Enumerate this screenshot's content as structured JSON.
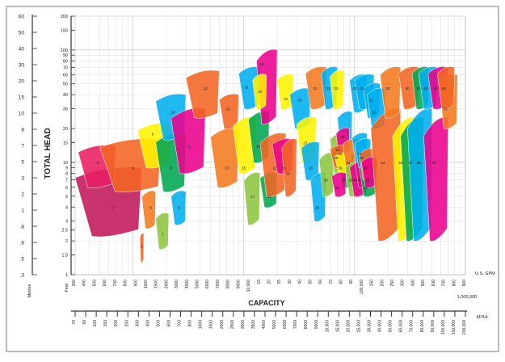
{
  "chart_data": {
    "type": "area",
    "title": "",
    "xlabel": "CAPACITY",
    "ylabel": "TOTAL HEAD",
    "x_scale": "log",
    "y_scale": "log",
    "grid": true,
    "left_units_label": "Metres",
    "left_units2_label": "Feet",
    "left_axis_ticks": [
      "60",
      "50",
      "40",
      "30",
      "20",
      "15",
      "10",
      "8",
      "7",
      "5",
      "3",
      "2",
      "1",
      ".8",
      ".6",
      ".5",
      ".3"
    ],
    "head_axis_ticks": [
      "200",
      "150",
      "100",
      "90",
      "80",
      "70",
      "60",
      "50",
      "40",
      "30",
      "20",
      "15",
      "10",
      "9",
      "8",
      "7",
      "6",
      "5",
      "4",
      "3",
      "2.5",
      "2",
      "1.5",
      "1"
    ],
    "usgpm_label": "U.S. GPM",
    "usgpm_ticks": [
      "300",
      "400",
      "500",
      "600",
      "700",
      "800",
      "900",
      "1000",
      "1500",
      "2000",
      "3000",
      "4000",
      "5000",
      "6000",
      "7000",
      "8000",
      "9000",
      "10,000",
      "15",
      "20",
      "25",
      "30",
      "40",
      "50",
      "60",
      "70",
      "80",
      "90",
      "100,000",
      "150",
      "200",
      "250",
      "300",
      "400",
      "500",
      "600",
      "700",
      "800",
      "900"
    ],
    "m3h_label": "M³/Hr.",
    "m3h_ticks": [
      "70",
      "90",
      "100",
      "150",
      "200",
      "250",
      "300",
      "400",
      "500",
      "600",
      "700",
      "800",
      "1000",
      "1500",
      "2000",
      "2500",
      "3000",
      "3500",
      "4000",
      "5000",
      "6000",
      "7000",
      "8000",
      "9000",
      "10,000",
      "15,000",
      "20,000",
      "25,000",
      "30,000",
      "40,000",
      "50,000",
      "60,000",
      "70,000",
      "80,000",
      "90,000",
      "100,000",
      "150,000",
      "200,000"
    ],
    "capacity_end_label": "1,000,000",
    "series": [
      {
        "name": "1",
        "color": "#c2185b",
        "x_range": [
          300,
          1200
        ],
        "y_range": [
          2.2,
          9
        ],
        "label_at": [
          650,
          4
        ]
      },
      {
        "name": "2",
        "color": "#e91e63",
        "x_range": [
          320,
          700
        ],
        "y_range": [
          6,
          14
        ],
        "label_at": [
          480,
          10
        ]
      },
      {
        "name": "3",
        "color": "#f26522",
        "x_range": [
          1150,
          1250
        ],
        "y_range": [
          1.3,
          2.3
        ],
        "label_at": [
          1200,
          1.8
        ]
      },
      {
        "name": "4",
        "color": "#f26522",
        "x_range": [
          500,
          1800
        ],
        "y_range": [
          5.5,
          16
        ],
        "label_at": [
          1000,
          9
        ]
      },
      {
        "name": "5",
        "color": "#f47a20",
        "x_range": [
          1200,
          1600
        ],
        "y_range": [
          2.6,
          5.5
        ],
        "label_at": [
          1450,
          4
        ]
      },
      {
        "name": "6",
        "color": "#fff200",
        "x_range": [
          1100,
          2200
        ],
        "y_range": [
          9,
          22
        ],
        "label_at": [
          1500,
          18
        ]
      },
      {
        "name": "7",
        "color": "#8dc63f",
        "x_range": [
          1600,
          2100
        ],
        "y_range": [
          1.7,
          3.5
        ],
        "label_at": [
          1850,
          2.3
        ]
      },
      {
        "name": "8",
        "color": "#00a651",
        "x_range": [
          1600,
          3000
        ],
        "y_range": [
          5.5,
          18
        ],
        "label_at": [
          2200,
          9
        ]
      },
      {
        "name": "9",
        "color": "#00aeef",
        "x_range": [
          2200,
          3000
        ],
        "y_range": [
          2.8,
          5.5
        ],
        "label_at": [
          2600,
          4
        ]
      },
      {
        "name": "10",
        "color": "#00aeef",
        "x_range": [
          1600,
          3000
        ],
        "y_range": [
          16,
          40
        ],
        "label_at": [
          2300,
          28
        ]
      },
      {
        "name": "11",
        "color": "#ec008c",
        "x_range": [
          2200,
          4500
        ],
        "y_range": [
          8,
          30
        ],
        "label_at": [
          3200,
          14
        ]
      },
      {
        "name": "12",
        "color": "#f26522",
        "x_range": [
          3000,
          6000
        ],
        "y_range": [
          25,
          65
        ],
        "label_at": [
          4500,
          46
        ]
      },
      {
        "name": "13",
        "color": "#f47a20",
        "x_range": [
          5000,
          9000
        ],
        "y_range": [
          6,
          20
        ],
        "label_at": [
          7000,
          9
        ]
      },
      {
        "name": "14",
        "color": "#f26522",
        "x_range": [
          6000,
          9000
        ],
        "y_range": [
          20,
          40
        ],
        "label_at": [
          7200,
          30
        ]
      },
      {
        "name": "15",
        "color": "#fff200",
        "x_range": [
          8000,
          13000
        ],
        "y_range": [
          8,
          25
        ],
        "label_at": [
          10000,
          9
        ]
      },
      {
        "name": "16",
        "color": "#00aeef",
        "x_range": [
          9000,
          14000
        ],
        "y_range": [
          30,
          70
        ],
        "label_at": [
          10500,
          47
        ]
      },
      {
        "name": "17",
        "color": "#8dc63f",
        "x_range": [
          10000,
          14000
        ],
        "y_range": [
          2.8,
          8
        ],
        "label_at": [
          12000,
          5
        ]
      },
      {
        "name": "18",
        "color": "#00a651",
        "x_range": [
          11000,
          17000
        ],
        "y_range": [
          10,
          28
        ],
        "label_at": [
          13500,
          14
        ]
      },
      {
        "name": "19",
        "color": "#ec008c",
        "x_range": [
          13000,
          20000
        ],
        "y_range": [
          22,
          100
        ],
        "label_at": [
          14500,
          75
        ]
      },
      {
        "name": "20",
        "color": "#fff200",
        "x_range": [
          12000,
          16000
        ],
        "y_range": [
          30,
          60
        ],
        "label_at": [
          14000,
          43
        ]
      },
      {
        "name": "21",
        "color": "#00a651",
        "x_range": [
          14000,
          20000
        ],
        "y_range": [
          4,
          8
        ],
        "label_at": [
          17000,
          5
        ]
      },
      {
        "name": "22",
        "color": "#f26522",
        "x_range": [
          14000,
          24000
        ],
        "y_range": [
          5,
          18
        ],
        "label_at": [
          19000,
          9
        ]
      },
      {
        "name": "23",
        "color": "#ec008c",
        "x_range": [
          18000,
          28000
        ],
        "y_range": [
          8,
          16
        ],
        "label_at": [
          23000,
          9
        ]
      },
      {
        "name": "24",
        "color": "#fff200",
        "x_range": [
          20000,
          28000
        ],
        "y_range": [
          30,
          60
        ],
        "label_at": [
          24000,
          37
        ]
      },
      {
        "name": "25",
        "color": "#f26522",
        "x_range": [
          22000,
          30000
        ],
        "y_range": [
          5,
          16
        ],
        "label_at": [
          25000,
          8
        ]
      },
      {
        "name": "26",
        "color": "#00aeef",
        "x_range": [
          26000,
          40000
        ],
        "y_range": [
          20,
          45
        ],
        "label_at": [
          32000,
          36
        ]
      },
      {
        "name": "27",
        "color": "#fff200",
        "x_range": [
          30000,
          45000
        ],
        "y_range": [
          10,
          25
        ],
        "label_at": [
          36000,
          15
        ]
      },
      {
        "name": "28",
        "color": "#00aeef",
        "x_range": [
          33000,
          48000
        ],
        "y_range": [
          7,
          15
        ],
        "label_at": [
          40000,
          9
        ]
      },
      {
        "name": "29",
        "color": "#00aeef",
        "x_range": [
          40000,
          55000
        ],
        "y_range": [
          3,
          8
        ],
        "label_at": [
          46000,
          4
        ]
      },
      {
        "name": "30",
        "color": "#8dc63f",
        "x_range": [
          48000,
          65000
        ],
        "y_range": [
          5,
          12
        ],
        "label_at": [
          55000,
          7
        ]
      },
      {
        "name": "31",
        "color": "#f47a20",
        "x_range": [
          36000,
          56000
        ],
        "y_range": [
          30,
          70
        ],
        "label_at": [
          44000,
          46
        ]
      },
      {
        "name": "32",
        "color": "#00aeef",
        "x_range": [
          50000,
          70000
        ],
        "y_range": [
          30,
          70
        ],
        "label_at": [
          58000,
          46
        ]
      },
      {
        "name": "33",
        "color": "#fff200",
        "x_range": [
          60000,
          80000
        ],
        "y_range": [
          30,
          65
        ],
        "label_at": [
          68000,
          46
        ]
      },
      {
        "name": "34",
        "color": "#00aeef",
        "x_range": [
          70000,
          95000
        ],
        "y_range": [
          12,
          28
        ],
        "label_at": [
          78000,
          17
        ]
      },
      {
        "name": "35",
        "color": "#8dc63f",
        "x_range": [
          60000,
          85000
        ],
        "y_range": [
          8,
          18
        ],
        "label_at": [
          70000,
          13
        ]
      },
      {
        "name": "36",
        "color": "#ec008c",
        "x_range": [
          68000,
          90000
        ],
        "y_range": [
          10,
          20
        ],
        "label_at": [
          74000,
          12
        ]
      },
      {
        "name": "37",
        "color": "#00a651",
        "x_range": [
          72000,
          100000
        ],
        "y_range": [
          6,
          12
        ],
        "label_at": [
          80000,
          7
        ]
      },
      {
        "name": "38",
        "color": "#f26522",
        "x_range": [
          60000,
          85000
        ],
        "y_range": [
          9,
          14
        ],
        "label_at": [
          68000,
          11
        ]
      },
      {
        "name": "39",
        "color": "#fff200",
        "x_range": [
          66000,
          92000
        ],
        "y_range": [
          8,
          12
        ],
        "label_at": [
          74000,
          9
        ]
      },
      {
        "name": "40",
        "color": "#ec008c",
        "x_range": [
          62000,
          84000
        ],
        "y_range": [
          5,
          8
        ],
        "label_at": [
          70000,
          6
        ]
      },
      {
        "name": "41",
        "color": "#f47a20",
        "x_range": [
          78000,
          110000
        ],
        "y_range": [
          8,
          16
        ],
        "label_at": [
          88000,
          10
        ]
      },
      {
        "name": "42",
        "color": "#8dc63f",
        "x_range": [
          82000,
          118000
        ],
        "y_range": [
          5,
          10
        ],
        "label_at": [
          92000,
          7
        ]
      },
      {
        "name": "43",
        "color": "#00aeef",
        "x_range": [
          90000,
          130000
        ],
        "y_range": [
          28,
          60
        ],
        "label_at": [
          100000,
          46
        ]
      },
      {
        "name": "44",
        "color": "#ec008c",
        "x_range": [
          90000,
          130000
        ],
        "y_range": [
          5,
          10
        ],
        "label_at": [
          100000,
          7
        ]
      },
      {
        "name": "45",
        "color": "#ec008c",
        "x_range": [
          100000,
          140000
        ],
        "y_range": [
          6,
          12
        ],
        "label_at": [
          110000,
          7
        ]
      },
      {
        "name": "46",
        "color": "#00a651",
        "x_range": [
          110000,
          160000
        ],
        "y_range": [
          5,
          10
        ],
        "label_at": [
          125000,
          6
        ]
      },
      {
        "name": "47",
        "color": "#00aeef",
        "x_range": [
          95000,
          130000
        ],
        "y_range": [
          10,
          18
        ],
        "label_at": [
          110000,
          12
        ]
      },
      {
        "name": "48",
        "color": "#00aeef",
        "x_range": [
          100000,
          140000
        ],
        "y_range": [
          9,
          16
        ],
        "label_at": [
          115000,
          11
        ]
      },
      {
        "name": "49",
        "color": "#f26522",
        "x_range": [
          110000,
          150000
        ],
        "y_range": [
          7,
          13
        ],
        "label_at": [
          125000,
          9
        ]
      },
      {
        "name": "50",
        "color": "#ec008c",
        "x_range": [
          115000,
          160000
        ],
        "y_range": [
          6,
          11
        ],
        "label_at": [
          130000,
          7
        ]
      },
      {
        "name": "51",
        "color": "#00aeef",
        "x_range": [
          100000,
          150000
        ],
        "y_range": [
          30,
          60
        ],
        "label_at": [
          118000,
          46
        ]
      },
      {
        "name": "52",
        "color": "#00aeef",
        "x_range": [
          120000,
          170000
        ],
        "y_range": [
          25,
          50
        ],
        "label_at": [
          140000,
          36
        ]
      },
      {
        "name": "53",
        "color": "#00aeef",
        "x_range": [
          130000,
          190000
        ],
        "y_range": [
          20,
          45
        ],
        "label_at": [
          150000,
          28
        ]
      },
      {
        "name": "54",
        "color": "#f26522",
        "x_range": [
          140000,
          260000
        ],
        "y_range": [
          2,
          30
        ],
        "label_at": [
          180000,
          10
        ]
      },
      {
        "name": "55",
        "color": "#f47a20",
        "x_range": [
          170000,
          260000
        ],
        "y_range": [
          25,
          70
        ],
        "label_at": [
          200000,
          46
        ]
      },
      {
        "name": "56",
        "color": "#fff200",
        "x_range": [
          220000,
          350000
        ],
        "y_range": [
          2,
          25
        ],
        "label_at": [
          260000,
          10
        ]
      },
      {
        "name": "57",
        "color": "#00a651",
        "x_range": [
          260000,
          420000
        ],
        "y_range": [
          2,
          25
        ],
        "label_at": [
          320000,
          10
        ]
      },
      {
        "name": "58",
        "color": "#00aeef",
        "x_range": [
          300000,
          500000
        ],
        "y_range": [
          2,
          30
        ],
        "label_at": [
          380000,
          10
        ]
      },
      {
        "name": "59",
        "color": "#ec008c",
        "x_range": [
          420000,
          700000
        ],
        "y_range": [
          2,
          25
        ],
        "label_at": [
          520000,
          10
        ]
      },
      {
        "name": "60",
        "color": "#f26522",
        "x_range": [
          250000,
          380000
        ],
        "y_range": [
          30,
          70
        ],
        "label_at": [
          300000,
          46
        ]
      },
      {
        "name": "61",
        "color": "#00a651",
        "x_range": [
          330000,
          470000
        ],
        "y_range": [
          30,
          70
        ],
        "label_at": [
          380000,
          46
        ]
      },
      {
        "name": "62",
        "color": "#00aeef",
        "x_range": [
          380000,
          560000
        ],
        "y_range": [
          30,
          70
        ],
        "label_at": [
          440000,
          46
        ]
      },
      {
        "name": "63",
        "color": "#ec008c",
        "x_range": [
          460000,
          700000
        ],
        "y_range": [
          30,
          70
        ],
        "label_at": [
          540000,
          46
        ]
      },
      {
        "name": "64",
        "color": "#f47a20",
        "x_range": [
          580000,
          850000
        ],
        "y_range": [
          20,
          60
        ],
        "label_at": [
          660000,
          30
        ]
      },
      {
        "name": "65",
        "color": "#f26522",
        "x_range": [
          560000,
          800000
        ],
        "y_range": [
          30,
          70
        ],
        "label_at": [
          640000,
          46
        ]
      }
    ]
  }
}
